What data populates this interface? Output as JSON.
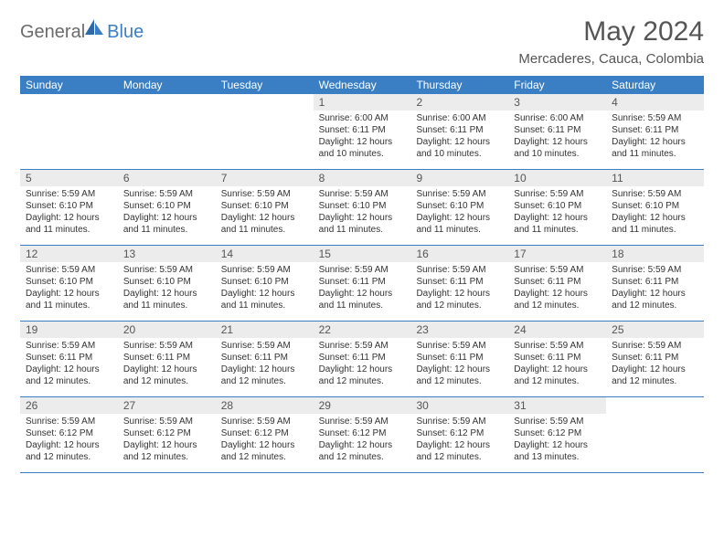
{
  "brand": {
    "text1": "General",
    "text2": "Blue"
  },
  "title": "May 2024",
  "location": "Mercaderes, Cauca, Colombia",
  "colors": {
    "header_bg": "#3a7fc4",
    "header_text": "#ffffff",
    "daynum_bg": "#ececec",
    "daynum_text": "#555555",
    "body_text": "#333333",
    "title_text": "#555555",
    "row_border": "#3a7fc4"
  },
  "day_headers": [
    "Sunday",
    "Monday",
    "Tuesday",
    "Wednesday",
    "Thursday",
    "Friday",
    "Saturday"
  ],
  "weeks": [
    [
      {
        "n": "",
        "sr": "",
        "ss": "",
        "dl": ""
      },
      {
        "n": "",
        "sr": "",
        "ss": "",
        "dl": ""
      },
      {
        "n": "",
        "sr": "",
        "ss": "",
        "dl": ""
      },
      {
        "n": "1",
        "sr": "6:00 AM",
        "ss": "6:11 PM",
        "dl": "12 hours and 10 minutes."
      },
      {
        "n": "2",
        "sr": "6:00 AM",
        "ss": "6:11 PM",
        "dl": "12 hours and 10 minutes."
      },
      {
        "n": "3",
        "sr": "6:00 AM",
        "ss": "6:11 PM",
        "dl": "12 hours and 10 minutes."
      },
      {
        "n": "4",
        "sr": "5:59 AM",
        "ss": "6:11 PM",
        "dl": "12 hours and 11 minutes."
      }
    ],
    [
      {
        "n": "5",
        "sr": "5:59 AM",
        "ss": "6:10 PM",
        "dl": "12 hours and 11 minutes."
      },
      {
        "n": "6",
        "sr": "5:59 AM",
        "ss": "6:10 PM",
        "dl": "12 hours and 11 minutes."
      },
      {
        "n": "7",
        "sr": "5:59 AM",
        "ss": "6:10 PM",
        "dl": "12 hours and 11 minutes."
      },
      {
        "n": "8",
        "sr": "5:59 AM",
        "ss": "6:10 PM",
        "dl": "12 hours and 11 minutes."
      },
      {
        "n": "9",
        "sr": "5:59 AM",
        "ss": "6:10 PM",
        "dl": "12 hours and 11 minutes."
      },
      {
        "n": "10",
        "sr": "5:59 AM",
        "ss": "6:10 PM",
        "dl": "12 hours and 11 minutes."
      },
      {
        "n": "11",
        "sr": "5:59 AM",
        "ss": "6:10 PM",
        "dl": "12 hours and 11 minutes."
      }
    ],
    [
      {
        "n": "12",
        "sr": "5:59 AM",
        "ss": "6:10 PM",
        "dl": "12 hours and 11 minutes."
      },
      {
        "n": "13",
        "sr": "5:59 AM",
        "ss": "6:10 PM",
        "dl": "12 hours and 11 minutes."
      },
      {
        "n": "14",
        "sr": "5:59 AM",
        "ss": "6:10 PM",
        "dl": "12 hours and 11 minutes."
      },
      {
        "n": "15",
        "sr": "5:59 AM",
        "ss": "6:11 PM",
        "dl": "12 hours and 11 minutes."
      },
      {
        "n": "16",
        "sr": "5:59 AM",
        "ss": "6:11 PM",
        "dl": "12 hours and 12 minutes."
      },
      {
        "n": "17",
        "sr": "5:59 AM",
        "ss": "6:11 PM",
        "dl": "12 hours and 12 minutes."
      },
      {
        "n": "18",
        "sr": "5:59 AM",
        "ss": "6:11 PM",
        "dl": "12 hours and 12 minutes."
      }
    ],
    [
      {
        "n": "19",
        "sr": "5:59 AM",
        "ss": "6:11 PM",
        "dl": "12 hours and 12 minutes."
      },
      {
        "n": "20",
        "sr": "5:59 AM",
        "ss": "6:11 PM",
        "dl": "12 hours and 12 minutes."
      },
      {
        "n": "21",
        "sr": "5:59 AM",
        "ss": "6:11 PM",
        "dl": "12 hours and 12 minutes."
      },
      {
        "n": "22",
        "sr": "5:59 AM",
        "ss": "6:11 PM",
        "dl": "12 hours and 12 minutes."
      },
      {
        "n": "23",
        "sr": "5:59 AM",
        "ss": "6:11 PM",
        "dl": "12 hours and 12 minutes."
      },
      {
        "n": "24",
        "sr": "5:59 AM",
        "ss": "6:11 PM",
        "dl": "12 hours and 12 minutes."
      },
      {
        "n": "25",
        "sr": "5:59 AM",
        "ss": "6:11 PM",
        "dl": "12 hours and 12 minutes."
      }
    ],
    [
      {
        "n": "26",
        "sr": "5:59 AM",
        "ss": "6:12 PM",
        "dl": "12 hours and 12 minutes."
      },
      {
        "n": "27",
        "sr": "5:59 AM",
        "ss": "6:12 PM",
        "dl": "12 hours and 12 minutes."
      },
      {
        "n": "28",
        "sr": "5:59 AM",
        "ss": "6:12 PM",
        "dl": "12 hours and 12 minutes."
      },
      {
        "n": "29",
        "sr": "5:59 AM",
        "ss": "6:12 PM",
        "dl": "12 hours and 12 minutes."
      },
      {
        "n": "30",
        "sr": "5:59 AM",
        "ss": "6:12 PM",
        "dl": "12 hours and 12 minutes."
      },
      {
        "n": "31",
        "sr": "5:59 AM",
        "ss": "6:12 PM",
        "dl": "12 hours and 13 minutes."
      },
      {
        "n": "",
        "sr": "",
        "ss": "",
        "dl": ""
      }
    ]
  ],
  "labels": {
    "sunrise": "Sunrise:",
    "sunset": "Sunset:",
    "daylight": "Daylight:"
  }
}
